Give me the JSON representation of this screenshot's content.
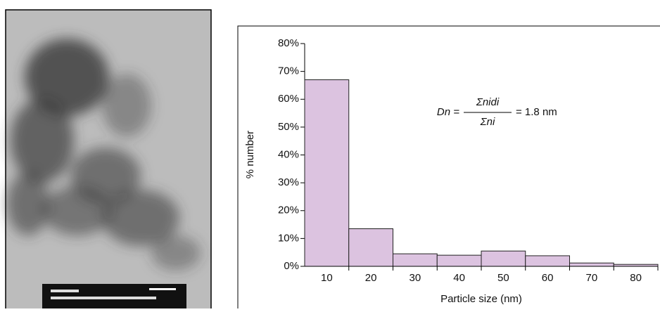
{
  "chart_data": {
    "type": "bar",
    "categories": [
      "10",
      "20",
      "30",
      "40",
      "50",
      "60",
      "70",
      "80"
    ],
    "values": [
      67,
      13.5,
      4.5,
      4,
      5.5,
      3.8,
      1.2,
      0.7
    ],
    "color": "#dcc3e0",
    "ylim": [
      0,
      80
    ],
    "yticks": [
      {
        "value": 0,
        "label": "0%"
      },
      {
        "value": 10,
        "label": "10%"
      },
      {
        "value": 20,
        "label": "20%"
      },
      {
        "value": 30,
        "label": "30%"
      },
      {
        "value": 40,
        "label": "40%"
      },
      {
        "value": 50,
        "label": "50%"
      },
      {
        "value": 60,
        "label": "60%"
      },
      {
        "value": 70,
        "label": "70%"
      },
      {
        "value": 80,
        "label": "80%"
      }
    ],
    "x_label": "Particle size (nm)",
    "y_label": "% number",
    "annotation": {
      "lhs": "Dn =",
      "numerator": "Σnidi",
      "denominator": "Σni",
      "rhs": "= 1.8 nm"
    }
  }
}
